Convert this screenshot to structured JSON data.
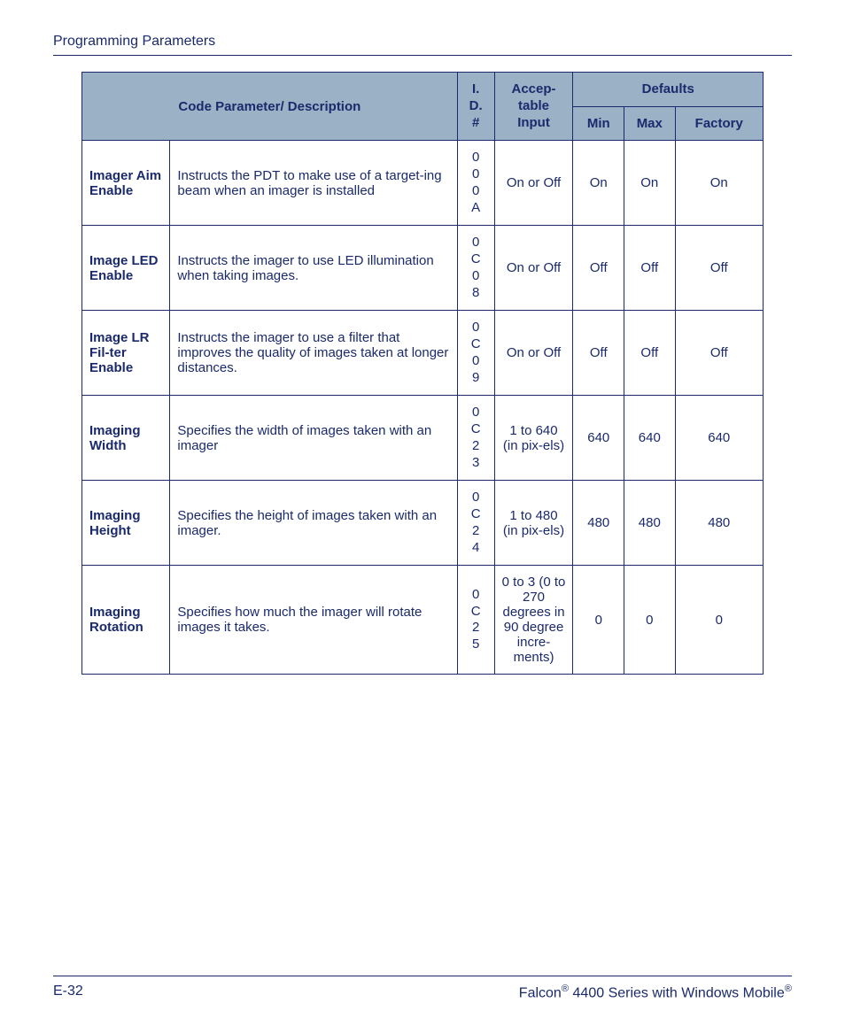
{
  "page": {
    "header_title": "Programming Parameters",
    "footer_left": "E-32",
    "footer_right_prefix": "Falcon",
    "footer_right_mid": " 4400 Series with Windows Mobile",
    "reg_mark": "®"
  },
  "table": {
    "header_bg": "#9bb1c6",
    "border_color": "#1a2a6c",
    "text_color": "#1a2a6c",
    "columns": {
      "code_param": "Code Parameter/ Description",
      "id": "I. D. #",
      "input": "Accep-table Input",
      "defaults": "Defaults",
      "min": "Min",
      "max": "Max",
      "factory": "Factory"
    },
    "rows": [
      {
        "name": "Imager Aim Enable",
        "desc": "Instructs the PDT to make use of a target-ing beam when an imager is installed",
        "id": [
          "0",
          "0",
          "0",
          "A"
        ],
        "input": "On or Off",
        "min": "On",
        "max": "On",
        "factory": "On"
      },
      {
        "name": "Image LED Enable",
        "desc": "Instructs the imager to use LED illumination when taking images.",
        "id": [
          "0",
          "C",
          "0",
          "8"
        ],
        "input": "On or Off",
        "min": "Off",
        "max": "Off",
        "factory": "Off"
      },
      {
        "name": "Image LR Fil-ter Enable",
        "desc": "Instructs the imager to use a filter that improves the quality of images taken at longer distances.",
        "id": [
          "0",
          "C",
          "0",
          "9"
        ],
        "input": "On or Off",
        "min": "Off",
        "max": "Off",
        "factory": "Off"
      },
      {
        "name": "Imaging Width",
        "desc": "Specifies the width of images taken with an imager",
        "id": [
          "0",
          "C",
          "2",
          "3"
        ],
        "input": "1 to 640 (in pix-els)",
        "min": "640",
        "max": "640",
        "factory": "640"
      },
      {
        "name": "Imaging Height",
        "desc": "Specifies the height of images taken with an imager.",
        "id": [
          "0",
          "C",
          "2",
          "4"
        ],
        "input": "1 to 480 (in pix-els)",
        "min": "480",
        "max": "480",
        "factory": "480"
      },
      {
        "name": "Imaging Rotation",
        "desc": "Specifies how much the imager will rotate images it takes.",
        "id": [
          "0",
          "C",
          "2",
          "5"
        ],
        "input": "0 to 3 (0 to 270 degrees in 90 degree incre-ments)",
        "min": "0",
        "max": "0",
        "factory": "0"
      }
    ]
  }
}
